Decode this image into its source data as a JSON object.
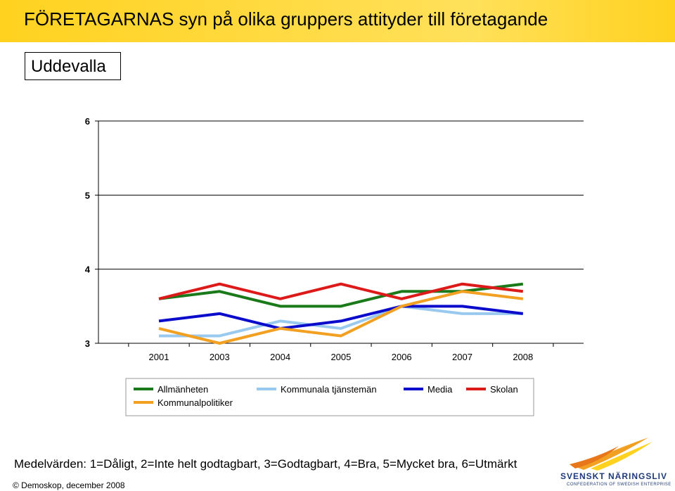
{
  "header": {
    "title": "FÖRETAGARNAS syn på olika gruppers attityder till företagande",
    "place": "Uddevalla"
  },
  "footer": {
    "note": "Medelvärden: 1=Dåligt, 2=Inte helt godtagbart, 3=Godtagbart, 4=Bra, 5=Mycket bra, 6=Utmärkt",
    "copyright": "© Demoskop, december 2008",
    "logo_name": "SVENSKT NÄRINGSLIV",
    "logo_sub": "CONFEDERATION OF SWEDISH ENTERPRISE"
  },
  "chart_data": {
    "type": "line",
    "title": "",
    "xlabel": "",
    "ylabel": "",
    "ylim": [
      3,
      6
    ],
    "yticks": [
      3,
      4,
      5,
      6
    ],
    "x": [
      "2001",
      "2003",
      "2004",
      "2005",
      "2006",
      "2007",
      "2008"
    ],
    "grid": true,
    "legend_position": "bottom",
    "series": [
      {
        "name": "Allmänheten",
        "color": "#1a7a1a",
        "values": [
          3.6,
          3.7,
          3.5,
          3.5,
          3.7,
          3.7,
          3.8
        ]
      },
      {
        "name": "Kommunala tjänstemän",
        "color": "#99c9ee",
        "values": [
          3.1,
          3.1,
          3.3,
          3.2,
          3.5,
          3.4,
          3.4
        ]
      },
      {
        "name": "Media",
        "color": "#0b0bcc",
        "values": [
          3.3,
          3.4,
          3.2,
          3.3,
          3.5,
          3.5,
          3.4
        ]
      },
      {
        "name": "Skolan",
        "color": "#dd1a1a",
        "values": [
          3.6,
          3.8,
          3.6,
          3.8,
          3.6,
          3.8,
          3.7
        ]
      },
      {
        "name": "Kommunalpolitiker",
        "color": "#f2a021",
        "values": [
          3.2,
          3.0,
          3.2,
          3.1,
          3.5,
          3.7,
          3.6
        ]
      }
    ]
  }
}
